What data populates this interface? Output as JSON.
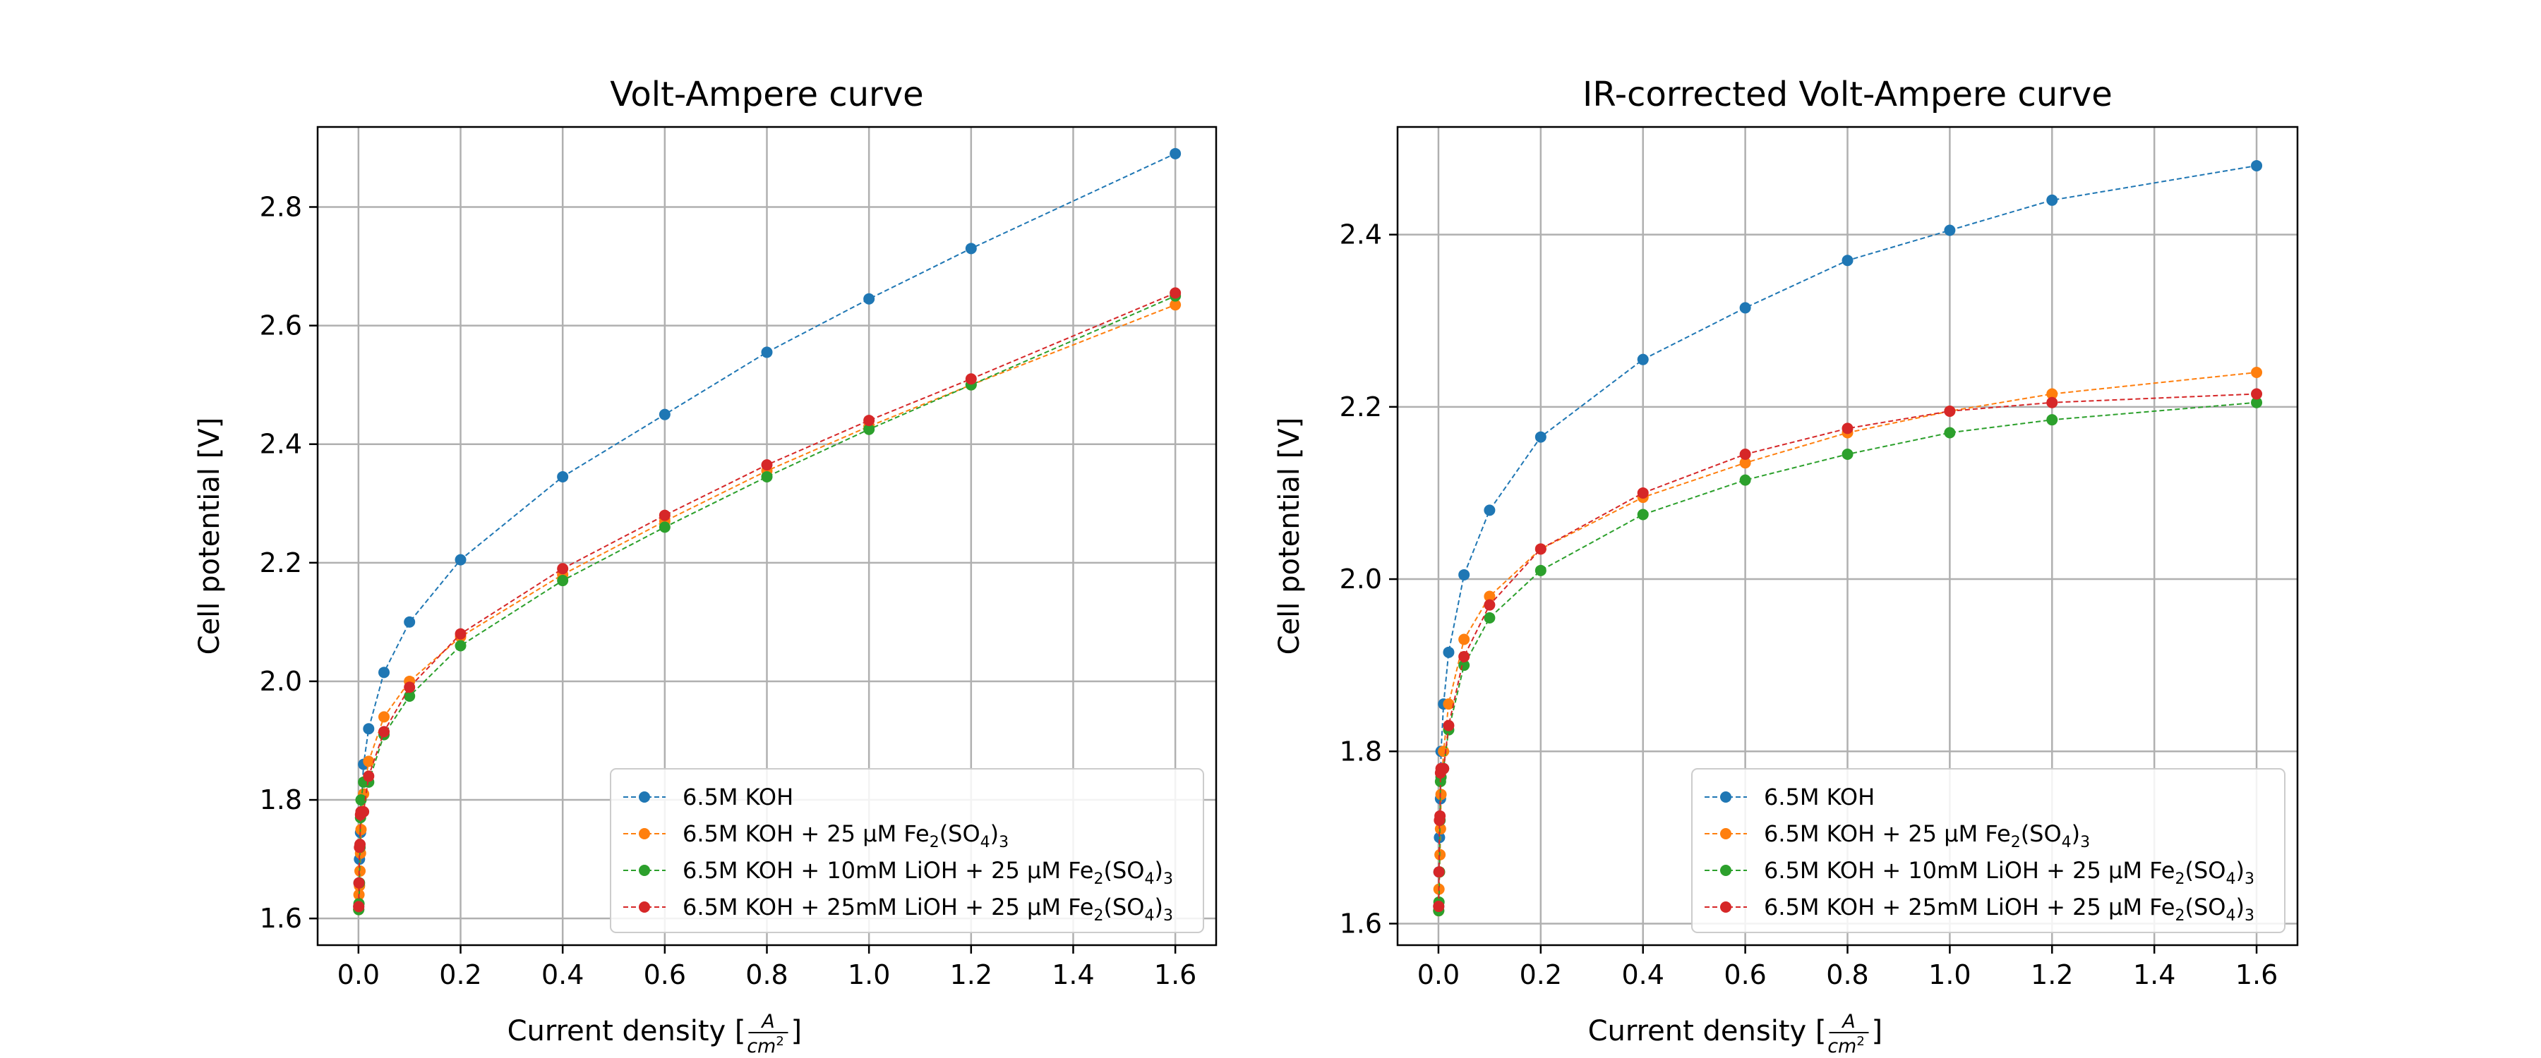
{
  "palette": {
    "blue": "#1f77b4",
    "orange": "#ff7f0e",
    "green": "#2ca02c",
    "red": "#d62728"
  },
  "chart_data": [
    {
      "type": "line",
      "title": "Volt-Ampere curve",
      "xlabel": "Current density [A/cm²]",
      "xlabel_prefix": "Current density [",
      "xlabel_num": "A",
      "xlabel_den": "cm",
      "xlabel_den_sup": "2",
      "xlabel_suffix": "]",
      "ylabel": "Cell potential [V]",
      "xlim": [
        -0.08,
        1.68
      ],
      "ylim": [
        1.555,
        2.935
      ],
      "xticks": [
        "0.0",
        "0.2",
        "0.4",
        "0.6",
        "0.8",
        "1.0",
        "1.2",
        "1.4",
        "1.6"
      ],
      "yticks": [
        "1.6",
        "1.8",
        "2.0",
        "2.2",
        "2.4",
        "2.6",
        "2.8"
      ],
      "grid": true,
      "legend_position": "lower right",
      "x": [
        0.0005,
        0.001,
        0.002,
        0.003,
        0.004,
        0.005,
        0.01,
        0.02,
        0.05,
        0.1,
        0.2,
        0.4,
        0.6,
        0.8,
        1.0,
        1.2,
        1.6
      ],
      "series": [
        {
          "name": "6.5M KOH",
          "color": "#1f77b4",
          "values": [
            1.62,
            1.66,
            1.7,
            1.72,
            1.745,
            1.78,
            1.86,
            1.92,
            2.015,
            2.1,
            2.205,
            2.345,
            2.45,
            2.555,
            2.645,
            2.73,
            2.89
          ]
        },
        {
          "name": "6.5M KOH + 25 μM Fe2(SO4)3",
          "color": "#ff7f0e",
          "values": [
            1.615,
            1.64,
            1.655,
            1.68,
            1.71,
            1.75,
            1.81,
            1.865,
            1.94,
            2.0,
            2.075,
            2.18,
            2.27,
            2.355,
            2.43,
            2.5,
            2.635
          ]
        },
        {
          "name": "6.5M KOH + 10mM LiOH + 25 μM Fe2(SO4)3",
          "color": "#2ca02c",
          "values": [
            1.615,
            1.625,
            1.66,
            1.72,
            1.77,
            1.8,
            1.83,
            1.83,
            1.91,
            1.975,
            2.06,
            2.17,
            2.26,
            2.345,
            2.425,
            2.5,
            2.65
          ]
        },
        {
          "name": "6.5M KOH + 25mM LiOH + 25 μM Fe2(SO4)3",
          "color": "#d62728",
          "values": [
            1.62,
            1.66,
            1.72,
            1.725,
            1.775,
            1.78,
            1.78,
            1.84,
            1.915,
            1.99,
            2.08,
            2.19,
            2.28,
            2.365,
            2.44,
            2.51,
            2.655
          ]
        }
      ],
      "legend": [
        {
          "base": "6.5M KOH",
          "fe": false
        },
        {
          "base": "6.5M KOH + 25 μM Fe",
          "fe": true
        },
        {
          "base": "6.5M KOH + 10mM LiOH + 25 μM Fe",
          "fe": true
        },
        {
          "base": "6.5M KOH + 25mM LiOH + 25 μM Fe",
          "fe": true
        }
      ]
    },
    {
      "type": "line",
      "title": "IR-corrected Volt-Ampere curve",
      "xlabel": "Current density [A/cm²]",
      "xlabel_prefix": "Current density [",
      "xlabel_num": "A",
      "xlabel_den": "cm",
      "xlabel_den_sup": "2",
      "xlabel_suffix": "]",
      "ylabel": "Cell potential [V]",
      "xlim": [
        -0.08,
        1.68
      ],
      "ylim": [
        1.575,
        2.525
      ],
      "xticks": [
        "0.0",
        "0.2",
        "0.4",
        "0.6",
        "0.8",
        "1.0",
        "1.2",
        "1.4",
        "1.6"
      ],
      "yticks": [
        "1.6",
        "1.8",
        "2.0",
        "2.2",
        "2.4"
      ],
      "grid": true,
      "legend_position": "lower right",
      "x": [
        0.0005,
        0.001,
        0.002,
        0.003,
        0.004,
        0.005,
        0.01,
        0.02,
        0.05,
        0.1,
        0.2,
        0.4,
        0.6,
        0.8,
        1.0,
        1.2,
        1.6
      ],
      "series": [
        {
          "name": "6.5M KOH",
          "color": "#1f77b4",
          "values": [
            1.62,
            1.66,
            1.7,
            1.72,
            1.745,
            1.8,
            1.855,
            1.915,
            2.005,
            2.08,
            2.165,
            2.255,
            2.315,
            2.37,
            2.405,
            2.44,
            2.48
          ]
        },
        {
          "name": "6.5M KOH + 25 μM Fe2(SO4)3",
          "color": "#ff7f0e",
          "values": [
            1.615,
            1.64,
            1.66,
            1.68,
            1.71,
            1.75,
            1.8,
            1.855,
            1.93,
            1.98,
            2.035,
            2.095,
            2.135,
            2.17,
            2.195,
            2.215,
            2.24
          ]
        },
        {
          "name": "6.5M KOH + 10mM LiOH + 25 μM Fe2(SO4)3",
          "color": "#2ca02c",
          "values": [
            1.615,
            1.625,
            1.66,
            1.72,
            1.765,
            1.77,
            1.78,
            1.825,
            1.9,
            1.955,
            2.01,
            2.075,
            2.115,
            2.145,
            2.17,
            2.185,
            2.205
          ]
        },
        {
          "name": "6.5M KOH + 25mM LiOH + 25 μM Fe2(SO4)3",
          "color": "#d62728",
          "values": [
            1.62,
            1.66,
            1.72,
            1.725,
            1.775,
            1.78,
            1.78,
            1.83,
            1.91,
            1.97,
            2.035,
            2.1,
            2.145,
            2.175,
            2.195,
            2.205,
            2.215
          ]
        }
      ],
      "legend": [
        {
          "base": "6.5M KOH",
          "fe": false
        },
        {
          "base": "6.5M KOH + 25 μM Fe",
          "fe": true
        },
        {
          "base": "6.5M KOH + 10mM LiOH + 25 μM Fe",
          "fe": true
        },
        {
          "base": "6.5M KOH + 25mM LiOH + 25 μM Fe",
          "fe": true
        }
      ]
    }
  ],
  "legend_formula": {
    "sub1": "2",
    "mid": "(SO",
    "sub2": "4",
    "end": ")",
    "sub3": "3"
  }
}
